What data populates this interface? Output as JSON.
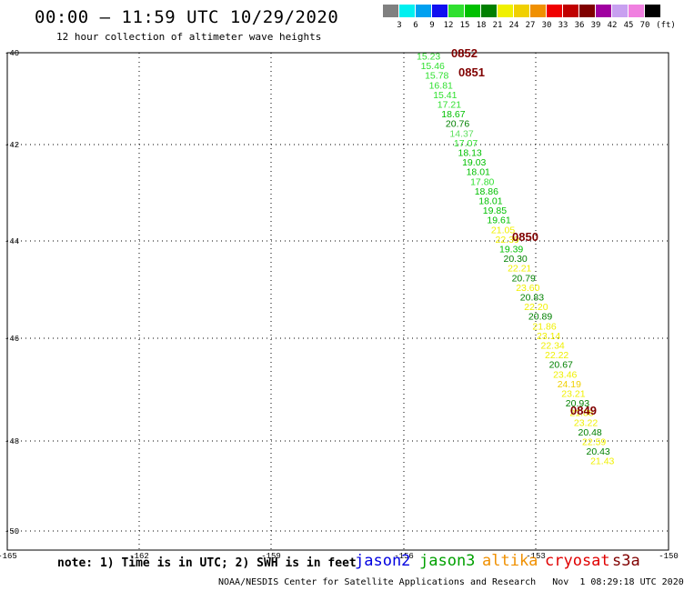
{
  "header": {
    "title": "00:00 – 11:59 UTC 10/29/2020",
    "subtitle": "12 hour collection of altimeter wave heights"
  },
  "legend": {
    "unit": "(ft)",
    "items": [
      {
        "label": "3",
        "color": "#808080"
      },
      {
        "label": "6",
        "color": "#00f0f0"
      },
      {
        "label": "9",
        "color": "#00a0f0"
      },
      {
        "label": "12",
        "color": "#1010f0"
      },
      {
        "label": "15",
        "color": "#30e030"
      },
      {
        "label": "18",
        "color": "#00c000"
      },
      {
        "label": "21",
        "color": "#008000"
      },
      {
        "label": "24",
        "color": "#f0f000"
      },
      {
        "label": "27",
        "color": "#f0d000"
      },
      {
        "label": "30",
        "color": "#f09000"
      },
      {
        "label": "33",
        "color": "#f00000"
      },
      {
        "label": "36",
        "color": "#c00000"
      },
      {
        "label": "39",
        "color": "#800000"
      },
      {
        "label": "42",
        "color": "#a000a0"
      },
      {
        "label": "45",
        "color": "#c8a0f0"
      },
      {
        "label": "70",
        "color": "#f080e0"
      },
      {
        "label": "",
        "color": "#000000"
      }
    ]
  },
  "axes": {
    "lat_ticks": [
      "-40",
      "-42",
      "-44",
      "-46",
      "-48",
      "-50"
    ],
    "lon_ticks": [
      "-165",
      "-162",
      "-159",
      "-156",
      "-153",
      "-150"
    ]
  },
  "times": [
    {
      "label": "0852",
      "color": "#800000"
    },
    {
      "label": "0851",
      "color": "#800000"
    },
    {
      "label": "0850",
      "color": "#800000"
    },
    {
      "label": "0849",
      "color": "#800000"
    }
  ],
  "observations": [
    {
      "label": "15.23",
      "color": "#30e030"
    },
    {
      "label": "15.46",
      "color": "#30e030"
    },
    {
      "label": "15.78",
      "color": "#30e030"
    },
    {
      "label": "16.81",
      "color": "#30e030"
    },
    {
      "label": "15.41",
      "color": "#30e030"
    },
    {
      "label": "17.21",
      "color": "#30e030"
    },
    {
      "label": "18.67",
      "color": "#00c000"
    },
    {
      "label": "20.76",
      "color": "#008000"
    },
    {
      "label": "14.37",
      "color": "#60e060"
    },
    {
      "label": "17.07",
      "color": "#30e030"
    },
    {
      "label": "18.13",
      "color": "#00c000"
    },
    {
      "label": "19.03",
      "color": "#00c000"
    },
    {
      "label": "18.01",
      "color": "#00c000"
    },
    {
      "label": "17.80",
      "color": "#30e030"
    },
    {
      "label": "18.86",
      "color": "#00c000"
    },
    {
      "label": "18.01",
      "color": "#00c000"
    },
    {
      "label": "19.85",
      "color": "#00c000"
    },
    {
      "label": "19.61",
      "color": "#00c000"
    },
    {
      "label": "21.05",
      "color": "#f0f000"
    },
    {
      "label": "22.39",
      "color": "#f0f000"
    },
    {
      "label": "19.39",
      "color": "#00c000"
    },
    {
      "label": "20.30",
      "color": "#008000"
    },
    {
      "label": "22.21",
      "color": "#f0f000"
    },
    {
      "label": "20.79",
      "color": "#008000"
    },
    {
      "label": "23.60",
      "color": "#f0f000"
    },
    {
      "label": "20.83",
      "color": "#008000"
    },
    {
      "label": "22.20",
      "color": "#f0f000"
    },
    {
      "label": "20.89",
      "color": "#008000"
    },
    {
      "label": "21.86",
      "color": "#f0f000"
    },
    {
      "label": "23.14",
      "color": "#f0f000"
    },
    {
      "label": "22.34",
      "color": "#f0f000"
    },
    {
      "label": "22.22",
      "color": "#f0f000"
    },
    {
      "label": "20.67",
      "color": "#008000"
    },
    {
      "label": "23.46",
      "color": "#f0f000"
    },
    {
      "label": "24.19",
      "color": "#f0d000"
    },
    {
      "label": "23.21",
      "color": "#f0f000"
    },
    {
      "label": "20.93",
      "color": "#008000"
    },
    {
      "label": "21.88",
      "color": "#f0f000"
    },
    {
      "label": "23.22",
      "color": "#f0f000"
    },
    {
      "label": "20.48",
      "color": "#008000"
    },
    {
      "label": "22.59",
      "color": "#f0f000"
    },
    {
      "label": "20.43",
      "color": "#008000"
    },
    {
      "label": "21.43",
      "color": "#f0f000"
    }
  ],
  "footer": {
    "note": "note: 1) Time is in UTC; 2) SWH is in feet",
    "satellites": [
      {
        "name": "jason2",
        "color": "#0000e0"
      },
      {
        "name": "jason3",
        "color": "#00a000"
      },
      {
        "name": "altika",
        "color": "#f09000"
      },
      {
        "name": "cryosat",
        "color": "#e00000"
      },
      {
        "name": "s3a",
        "color": "#800000"
      }
    ],
    "credit": "NOAA/NESDIS Center for Satellite Applications and Research   Nov  1 08:29:18 UTC 2020"
  }
}
